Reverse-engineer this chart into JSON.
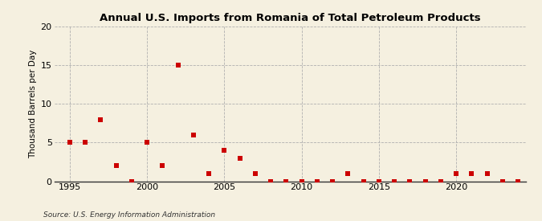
{
  "title": "Annual U.S. Imports from Romania of Total Petroleum Products",
  "ylabel": "Thousand Barrels per Day",
  "source": "Source: U.S. Energy Information Administration",
  "background_color": "#f5f0e0",
  "marker_color": "#cc0000",
  "grid_color": "#b0b0b0",
  "xlim": [
    1994,
    2024.5
  ],
  "ylim": [
    0,
    20
  ],
  "yticks": [
    0,
    5,
    10,
    15,
    20
  ],
  "xticks": [
    1995,
    2000,
    2005,
    2010,
    2015,
    2020
  ],
  "data": {
    "1995": 5.0,
    "1996": 5.0,
    "1997": 8.0,
    "1998": 2.0,
    "1999": 0.0,
    "2000": 5.0,
    "2001": 2.0,
    "2002": 15.0,
    "2003": 6.0,
    "2004": 1.0,
    "2005": 4.0,
    "2006": 3.0,
    "2007": 1.0,
    "2008": 0.0,
    "2009": 0.0,
    "2010": 0.0,
    "2011": 0.0,
    "2012": 0.0,
    "2013": 1.0,
    "2014": 0.0,
    "2015": 0.0,
    "2016": 0.0,
    "2017": 0.0,
    "2018": 0.0,
    "2019": 0.0,
    "2020": 1.0,
    "2021": 1.0,
    "2022": 1.0,
    "2023": 0.0,
    "2024": 0.0
  },
  "title_fontsize": 9.5,
  "ylabel_fontsize": 7.5,
  "tick_fontsize": 8,
  "source_fontsize": 6.5
}
